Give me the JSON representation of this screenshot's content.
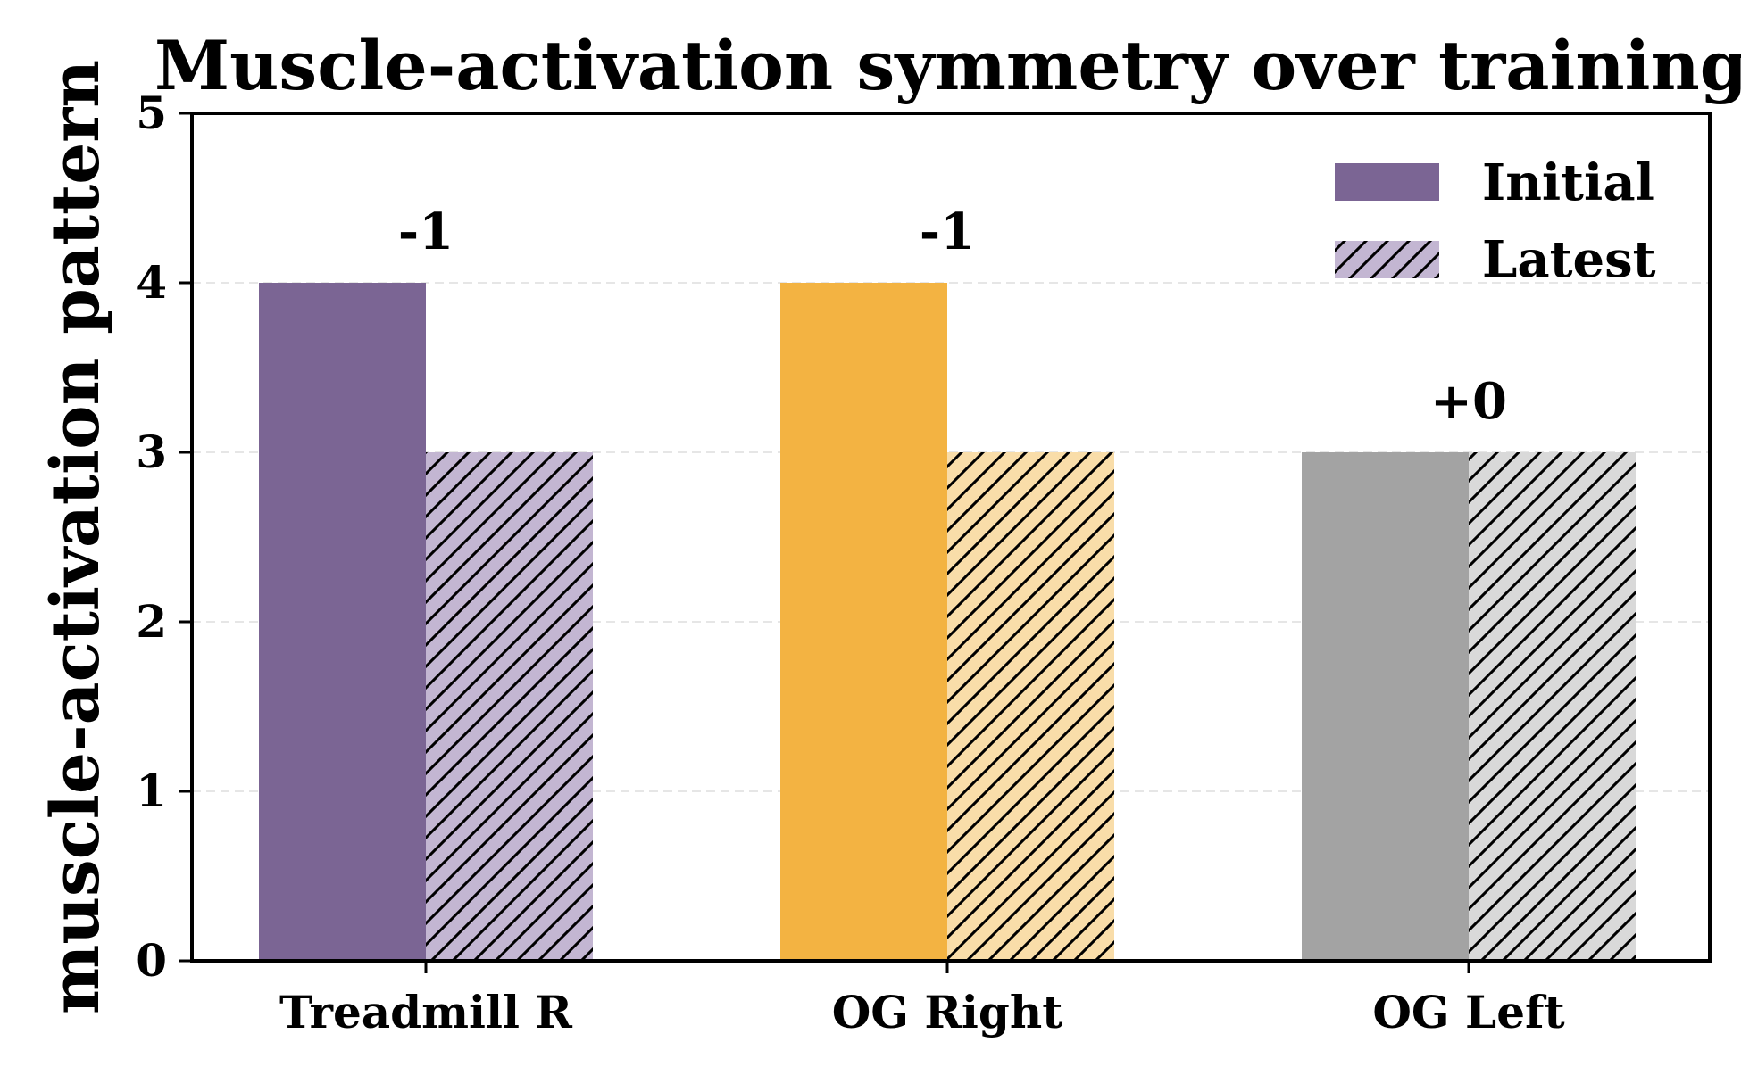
{
  "chart_data": {
    "type": "bar",
    "title": "Muscle-activation symmetry over training",
    "ylabel": "muscle-activation pattern",
    "xlabel": "",
    "categories": [
      "Treadmill R",
      "OG Right",
      "OG Left"
    ],
    "series": [
      {
        "name": "Initial",
        "values": [
          4,
          4,
          3
        ],
        "hatched": false
      },
      {
        "name": "Latest",
        "values": [
          3,
          3,
          3
        ],
        "hatched": true
      }
    ],
    "change_labels": [
      "-1",
      "-1",
      "+0"
    ],
    "category_colors": {
      "initial": [
        "#7b6594",
        "#f3b342",
        "#a3a3a3"
      ],
      "latest": [
        "#c3b6d2",
        "#f9dda9",
        "#d9d9d9"
      ]
    },
    "legend_colors": {
      "Initial": "#7b6594",
      "Latest": "#c3b6d2"
    },
    "ylim": [
      0,
      5
    ],
    "yticks": [
      "0",
      "1",
      "2",
      "3",
      "4",
      "5"
    ],
    "grid": "horizontal dashed",
    "legend_position": "top-right"
  }
}
